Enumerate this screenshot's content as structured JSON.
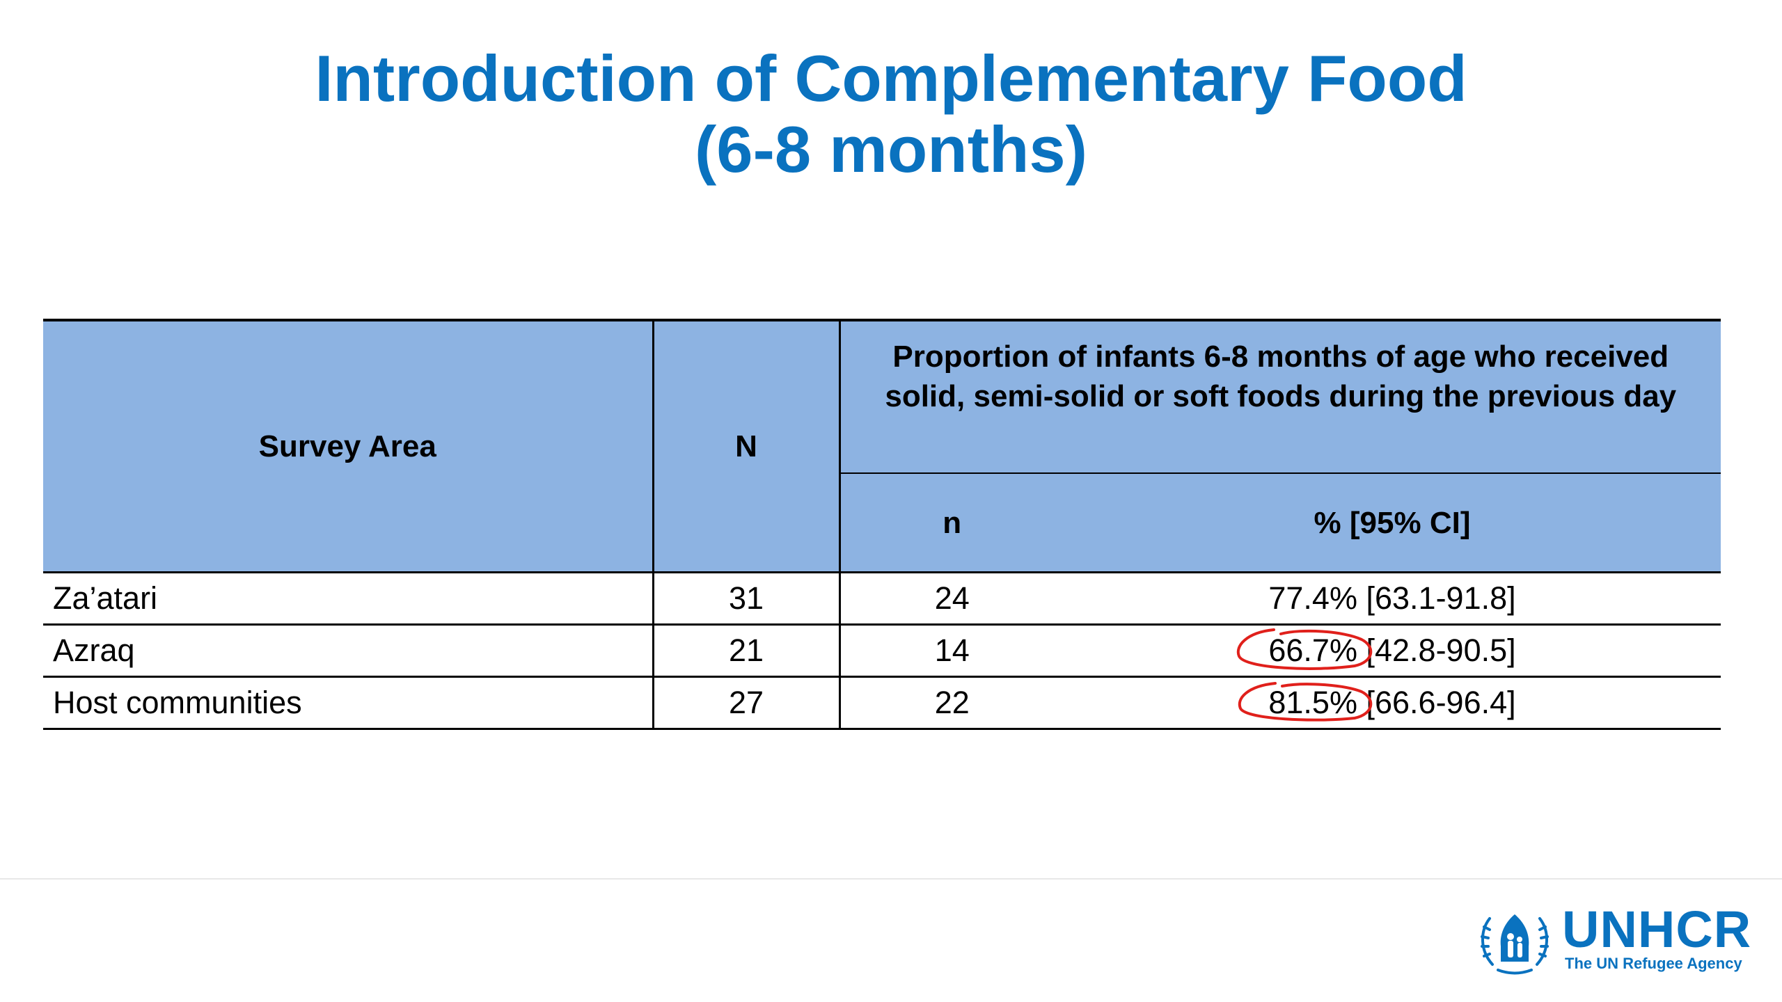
{
  "title": {
    "line1": "Introduction of Complementary Food",
    "line2": "(6-8 months)"
  },
  "table": {
    "headers": {
      "survey_area": "Survey Area",
      "N": "N",
      "proportion": "Proportion of infants 6-8 months of age who received solid, semi-solid or soft foods during the previous day",
      "n": "n",
      "pct_ci": "% [95% CI]"
    },
    "rows": [
      {
        "area": "Za’atari",
        "N": "31",
        "n": "24",
        "pct": "77.4%",
        "ci": "[63.1-91.8]",
        "circled": false
      },
      {
        "area": "Azraq",
        "N": "21",
        "n": "14",
        "pct": "66.7%",
        "ci": "[42.8-90.5]",
        "circled": true
      },
      {
        "area": "Host communities",
        "N": "27",
        "n": "22",
        "pct": "81.5%",
        "ci": "[66.6-96.4]",
        "circled": true
      }
    ]
  },
  "colors": {
    "title": "#0a72bf",
    "header_fill": "#8db3e2",
    "annotation": "#e0201b",
    "logo": "#0a72bf"
  },
  "logo": {
    "wordmark": "UNHCR",
    "tagline": "The UN Refugee Agency",
    "icon": "unhcr-emblem-icon"
  }
}
